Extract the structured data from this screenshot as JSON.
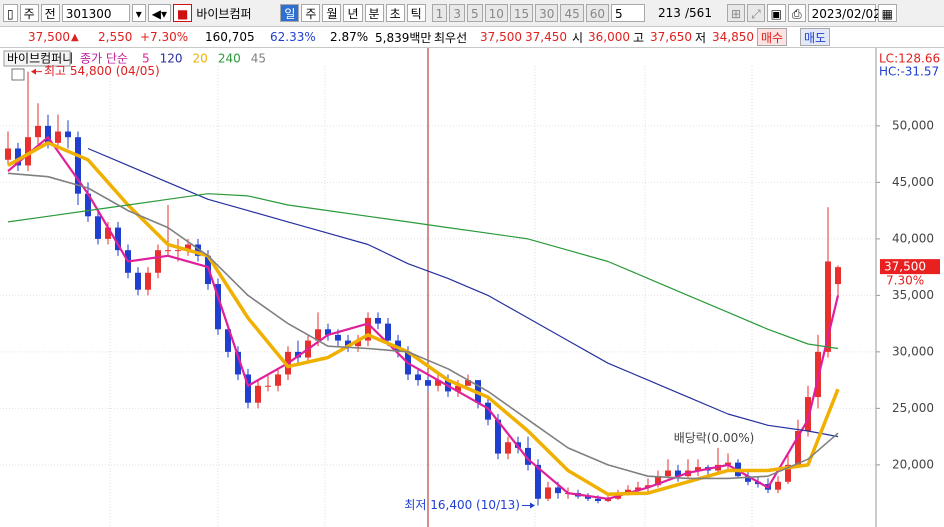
{
  "toolbar": {
    "period_kind": "주",
    "scope": "전",
    "code": "301300",
    "name": "바이브컴퍼",
    "intervals": [
      "일",
      "주",
      "월",
      "년",
      "분",
      "초",
      "틱"
    ],
    "minutes": [
      "1",
      "3",
      "5",
      "10",
      "15",
      "30",
      "45",
      "60"
    ],
    "count": "5",
    "shown": "213",
    "total": "/561",
    "date": "2023/02/02"
  },
  "quote": {
    "price": "37,500",
    "arrow": "▲",
    "change": "2,550",
    "change_pct": "+7.30%",
    "volume": "160,705",
    "ratio1": "62.33%",
    "ratio2": "2.87%",
    "amount": "5,839백만",
    "best_label": "최우선",
    "ask": "37,500",
    "bid": "37,450",
    "open_label": "시",
    "open": "36,000",
    "high_label": "고",
    "high": "37,650",
    "low_label": "저",
    "low": "34,850",
    "buy": "매수",
    "sell": "매도"
  },
  "chart_data": {
    "type": "candlestick",
    "title": "바이브컴퍼니",
    "ma_label": "종가 단순",
    "up_color": "#e8312f",
    "down_color": "#1e3fd0",
    "candles": [
      [
        47000,
        49500,
        46500,
        48000
      ],
      [
        48000,
        48500,
        46000,
        46500
      ],
      [
        46500,
        54800,
        46000,
        49000
      ],
      [
        49000,
        52000,
        48000,
        50000
      ],
      [
        50000,
        51000,
        48000,
        48500
      ],
      [
        48500,
        51000,
        48000,
        49500
      ],
      [
        49500,
        50500,
        48000,
        49000
      ],
      [
        49000,
        49500,
        43000,
        44000
      ],
      [
        44000,
        45000,
        41500,
        42000
      ],
      [
        42000,
        42500,
        39500,
        40000
      ],
      [
        40000,
        41500,
        39500,
        41000
      ],
      [
        41000,
        41500,
        38500,
        39000
      ],
      [
        39000,
        39500,
        36500,
        37000
      ],
      [
        37000,
        37500,
        35000,
        35500
      ],
      [
        35500,
        37500,
        35000,
        37000
      ],
      [
        37000,
        39500,
        36500,
        39000
      ],
      [
        39000,
        43000,
        38500,
        39000
      ],
      [
        39000,
        40000,
        38000,
        39000
      ],
      [
        39000,
        40000,
        38500,
        39500
      ],
      [
        39500,
        40000,
        38000,
        38500
      ],
      [
        38500,
        39000,
        35500,
        36000
      ],
      [
        36000,
        36500,
        31500,
        32000
      ],
      [
        32000,
        32500,
        29500,
        30000
      ],
      [
        30000,
        30500,
        27500,
        28000
      ],
      [
        28000,
        28500,
        25000,
        25500
      ],
      [
        25500,
        27500,
        25000,
        27000
      ],
      [
        27000,
        28000,
        26500,
        27000
      ],
      [
        27000,
        28500,
        26500,
        28000
      ],
      [
        28000,
        30500,
        27500,
        30000
      ],
      [
        30000,
        31000,
        29000,
        29500
      ],
      [
        29500,
        31500,
        29000,
        31000
      ],
      [
        31000,
        33500,
        30500,
        32000
      ],
      [
        32000,
        32500,
        31000,
        31500
      ],
      [
        31500,
        32000,
        30500,
        31000
      ],
      [
        31000,
        31500,
        30000,
        30500
      ],
      [
        30500,
        31500,
        30000,
        31000
      ],
      [
        31000,
        33500,
        30500,
        33000
      ],
      [
        33000,
        33500,
        32000,
        32500
      ],
      [
        32500,
        33000,
        30500,
        31000
      ],
      [
        31000,
        31500,
        29500,
        30000
      ],
      [
        30000,
        30500,
        27500,
        28000
      ],
      [
        28000,
        28500,
        27000,
        27500
      ],
      [
        27500,
        28000,
        26500,
        27000
      ],
      [
        27000,
        28000,
        26500,
        27500
      ],
      [
        27500,
        28000,
        26000,
        26500
      ],
      [
        26500,
        27500,
        26000,
        27000
      ],
      [
        27000,
        28000,
        27000,
        27500
      ],
      [
        27500,
        27500,
        25000,
        25500
      ],
      [
        25500,
        26000,
        23500,
        24000
      ],
      [
        24000,
        24500,
        20500,
        21000
      ],
      [
        21000,
        22500,
        20500,
        22000
      ],
      [
        22000,
        22500,
        21000,
        21500
      ],
      [
        21500,
        22500,
        19500,
        20000
      ],
      [
        20000,
        20500,
        16400,
        17000
      ],
      [
        17000,
        18500,
        16800,
        18000
      ],
      [
        18000,
        18500,
        17000,
        17500
      ],
      [
        17500,
        18000,
        17000,
        17500
      ],
      [
        17500,
        17800,
        17000,
        17200
      ],
      [
        17200,
        17500,
        16800,
        17000
      ],
      [
        17000,
        17300,
        16600,
        16800
      ],
      [
        16800,
        17500,
        16700,
        17000
      ],
      [
        17000,
        17800,
        16900,
        17500
      ],
      [
        17500,
        18200,
        17300,
        17800
      ],
      [
        17800,
        18500,
        17500,
        18000
      ],
      [
        18000,
        18800,
        17600,
        18200
      ],
      [
        18200,
        19500,
        18000,
        19000
      ],
      [
        19000,
        20500,
        18800,
        19500
      ],
      [
        19500,
        20000,
        18500,
        19000
      ],
      [
        19000,
        20500,
        18800,
        19500
      ],
      [
        19500,
        20500,
        19000,
        19800
      ],
      [
        19800,
        20000,
        19000,
        19500
      ],
      [
        19500,
        21500,
        19200,
        20000
      ],
      [
        20000,
        21000,
        19500,
        20200
      ],
      [
        20200,
        20500,
        18800,
        19000
      ],
      [
        19000,
        19500,
        18200,
        18500
      ],
      [
        18500,
        19000,
        18000,
        18300
      ],
      [
        18300,
        18800,
        17500,
        17800
      ],
      [
        17800,
        19000,
        17500,
        18500
      ],
      [
        18500,
        21000,
        18300,
        20000
      ],
      [
        20000,
        24000,
        19800,
        23000
      ],
      [
        23000,
        27000,
        22500,
        26000
      ],
      [
        26000,
        31500,
        25000,
        30000
      ],
      [
        30000,
        42800,
        29500,
        38000
      ],
      [
        36000,
        37650,
        34850,
        37500
      ]
    ],
    "ma_x": [
      0,
      4,
      8,
      12,
      16,
      20,
      24,
      28,
      32,
      36,
      40,
      44,
      48,
      52,
      56,
      60,
      64,
      68,
      72,
      76,
      80,
      83
    ],
    "series": [
      {
        "name": "5",
        "color": "#e0209a",
        "width": 2.2,
        "values": [
          46000,
          49000,
          44000,
          38000,
          38500,
          37500,
          27000,
          29000,
          31500,
          32500,
          29000,
          27000,
          25000,
          20500,
          17500,
          17000,
          18000,
          19300,
          20000,
          18000,
          24000,
          35000
        ]
      },
      {
        "name": "120",
        "color": "#26309e",
        "width": 1.2,
        "values": [
          null,
          null,
          48000,
          46500,
          45000,
          43500,
          42500,
          41500,
          40500,
          39500,
          37800,
          36500,
          35000,
          33000,
          31000,
          29000,
          27500,
          26000,
          24500,
          23500,
          23000,
          22500
        ]
      },
      {
        "name": "20",
        "color": "#f0b000",
        "width": 3.5,
        "values": [
          46500,
          48500,
          47000,
          43000,
          39500,
          38500,
          33000,
          28700,
          29500,
          31500,
          30000,
          27500,
          26000,
          23000,
          19500,
          17400,
          17500,
          18500,
          19500,
          19500,
          20000,
          26700
        ]
      },
      {
        "name": "240",
        "color": "#2a9a3a",
        "width": 1.2,
        "values": [
          41500,
          42000,
          42500,
          43000,
          43500,
          44000,
          43800,
          43000,
          42500,
          42000,
          41500,
          41000,
          40500,
          40000,
          39000,
          38000,
          36500,
          35000,
          33500,
          32000,
          30700,
          30300
        ]
      },
      {
        "name": "45",
        "color": "#808080",
        "width": 1.6,
        "values": [
          45800,
          45500,
          44500,
          42500,
          41000,
          38500,
          35000,
          32500,
          30500,
          30300,
          30000,
          28500,
          26500,
          24000,
          21500,
          20000,
          19000,
          18800,
          18800,
          19000,
          20500,
          22800
        ]
      }
    ],
    "ylim": [
      14500,
      55300
    ],
    "yticks": [
      {
        "value": 20000,
        "label": "20,000"
      },
      {
        "value": 25000,
        "label": "25,000"
      },
      {
        "value": 30000,
        "label": "30,000"
      },
      {
        "value": 35000,
        "label": "35,000"
      },
      {
        "value": 40000,
        "label": "40,000"
      },
      {
        "value": 45000,
        "label": "45,000"
      },
      {
        "value": 50000,
        "label": "50,000"
      }
    ],
    "grid": true,
    "last": {
      "value": 37500,
      "label": "37,500",
      "change": "7.30%"
    },
    "lc": "LC:128.66",
    "hc": "HC:-31.57",
    "high_note": {
      "text": "최고 54,800 (04/05)",
      "index": 2,
      "value": 54800
    },
    "low_note": {
      "text": "최저 16,400 (10/13)",
      "index": 53,
      "value": 16400
    },
    "dividend_note": {
      "text": "배당락(0.00%)",
      "index": 72
    }
  }
}
